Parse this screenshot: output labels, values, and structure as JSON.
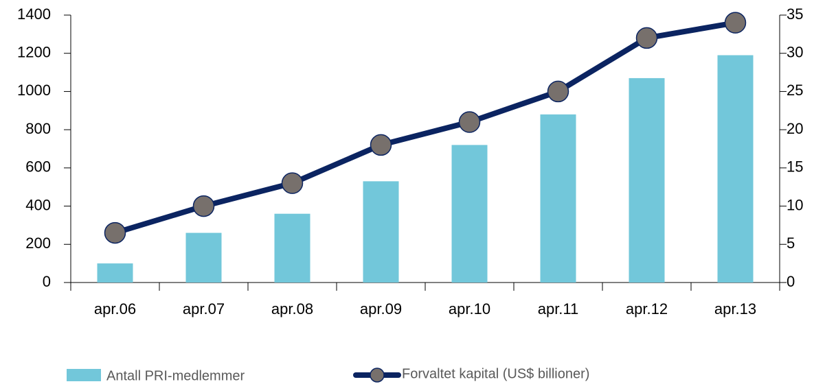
{
  "chart_data": {
    "type": "combo",
    "categories": [
      "apr.06",
      "apr.07",
      "apr.08",
      "apr.09",
      "apr.10",
      "apr.11",
      "apr.12",
      "apr.13"
    ],
    "series": [
      {
        "name": "Antall PRI-medlemmer",
        "type": "bar",
        "color": "#72c7da",
        "axis": "y",
        "values": [
          100,
          260,
          360,
          530,
          720,
          880,
          1070,
          1190
        ]
      },
      {
        "name": "Forvaltet kapital (US$ billioner)",
        "type": "line",
        "color": "#0b2461",
        "marker_color": "#77706c",
        "axis": "y2",
        "values": [
          6.5,
          10,
          13,
          18,
          21,
          25,
          32,
          34
        ]
      }
    ],
    "ylim": [
      0,
      1400
    ],
    "yticks": [
      0,
      200,
      400,
      600,
      800,
      1000,
      1200,
      1400
    ],
    "y2lim": [
      0,
      35
    ],
    "y2ticks": [
      0,
      5,
      10,
      15,
      20,
      25,
      30,
      35
    ],
    "grid": false,
    "legend": "bottom"
  }
}
